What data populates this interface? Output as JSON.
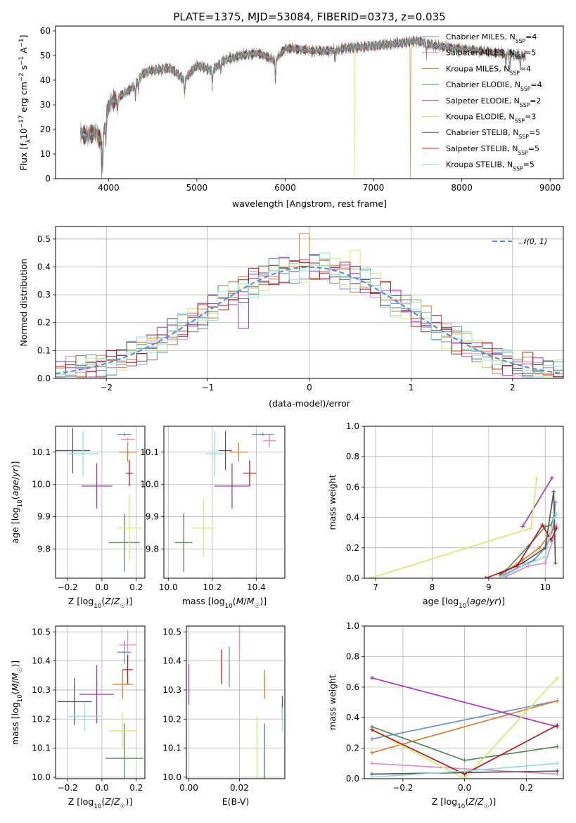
{
  "title": "PLATE=1375, MJD=53084, FIBERID=0373, z=0.035",
  "colors": {
    "Chabrier MILES": "#6a8fd6",
    "Salpeter MILES": "#e889c0",
    "Kroupa MILES": "#e07b2a",
    "Chabrier ELODIE": "#5a8a5e",
    "Salpeter ELODIE": "#a33bb5",
    "Kroupa ELODIE": "#d6ea6a",
    "Chabrier STELIB": "#555555",
    "Salpeter STELIB": "#b01a1a",
    "Kroupa STELIB": "#8ee0e6"
  },
  "chart_data": [
    {
      "id": "spectrum",
      "type": "line",
      "title": "PLATE=1375, MJD=53084, FIBERID=0373, z=0.035",
      "xlabel": "wavelength [Angstrom, rest frame]",
      "ylabel": "Flux [f_λ 10^-17 erg cm^-2 s^-1 A^-1]",
      "ylabel_parts": [
        "Flux [f",
        "λ",
        "10",
        "−17",
        " erg cm",
        "−2",
        " s",
        "−1",
        " A",
        "−1",
        "]"
      ],
      "xlim": [
        3400,
        9150
      ],
      "ylim": [
        0,
        62
      ],
      "xticks": [
        4000,
        5000,
        6000,
        7000,
        8000,
        9000
      ],
      "yticks": [
        0,
        10,
        20,
        30,
        40,
        50,
        60
      ],
      "legend_position": "upper right",
      "legend": [
        {
          "model": "Chabrier MILES",
          "text": "Chabrier MILES, N",
          "sub": "SSP",
          "eq": "=4"
        },
        {
          "model": "Salpeter MILES",
          "text": "Salpeter MILES, N",
          "sub": "SSP",
          "eq": "=5"
        },
        {
          "model": "Kroupa MILES",
          "text": "Kroupa MILES, N",
          "sub": "SSP",
          "eq": "=4"
        },
        {
          "model": "Chabrier ELODIE",
          "text": "Chabrier ELODIE, N",
          "sub": "SSP",
          "eq": "=4"
        },
        {
          "model": "Salpeter ELODIE",
          "text": "Salpeter ELODIE, N",
          "sub": "SSP",
          "eq": "=2"
        },
        {
          "model": "Kroupa ELODIE",
          "text": "Kroupa ELODIE, N",
          "sub": "SSP",
          "eq": "=3"
        },
        {
          "model": "Chabrier STELIB",
          "text": "Chabrier STELIB, N",
          "sub": "SSP",
          "eq": "=5"
        },
        {
          "model": "Salpeter STELIB",
          "text": "Salpeter STELIB, N",
          "sub": "SSP",
          "eq": "=5"
        },
        {
          "model": "Kroupa STELIB",
          "text": "Kroupa STELIB, N",
          "sub": "SSP",
          "eq": "=5"
        }
      ],
      "spectrum_range": [
        3680,
        8720
      ],
      "continuum_knots": [
        [
          3680,
          19
        ],
        [
          3750,
          17
        ],
        [
          3850,
          19
        ],
        [
          3930,
          14
        ],
        [
          3960,
          22
        ],
        [
          4000,
          30
        ],
        [
          4100,
          33
        ],
        [
          4200,
          35
        ],
        [
          4300,
          38
        ],
        [
          4400,
          43
        ],
        [
          4500,
          44
        ],
        [
          4700,
          45
        ],
        [
          4861,
          40
        ],
        [
          5000,
          46
        ],
        [
          5175,
          44
        ],
        [
          5300,
          48
        ],
        [
          5500,
          50
        ],
        [
          5700,
          51
        ],
        [
          5890,
          48
        ],
        [
          6000,
          53
        ],
        [
          6300,
          52
        ],
        [
          6563,
          52
        ],
        [
          6700,
          53
        ],
        [
          7000,
          54
        ],
        [
          7300,
          55
        ],
        [
          7500,
          56
        ],
        [
          7700,
          54
        ],
        [
          7900,
          53
        ],
        [
          8200,
          52
        ],
        [
          8400,
          51
        ],
        [
          8720,
          50
        ]
      ],
      "absorption_lines": [
        [
          3934,
          10
        ],
        [
          3969,
          9
        ],
        [
          4102,
          6
        ],
        [
          4304,
          6
        ],
        [
          4340,
          5
        ],
        [
          4861,
          6
        ],
        [
          5175,
          7
        ],
        [
          5270,
          4
        ],
        [
          5890,
          8
        ],
        [
          6563,
          3
        ],
        [
          7600,
          4
        ],
        [
          8498,
          5
        ],
        [
          8542,
          6
        ],
        [
          8662,
          5
        ]
      ],
      "dropouts": [
        {
          "model": "Kroupa MILES",
          "at": 7420
        },
        {
          "model": "Kroupa ELODIE",
          "at": 6790
        },
        {
          "model": "Chabrier STELIB",
          "at": 3920
        }
      ]
    },
    {
      "id": "residuals",
      "type": "histogram",
      "xlabel": "(data-model)/error",
      "ylabel": "Normed distribution",
      "xlim": [
        -2.5,
        2.5
      ],
      "ylim": [
        0,
        0.545
      ],
      "xticks": [
        -2,
        -1,
        0,
        1,
        2
      ],
      "xtick_labels": [
        "−2",
        "−1",
        "0",
        "1",
        "2"
      ],
      "yticks": [
        0,
        0.1,
        0.2,
        0.3,
        0.4,
        0.5
      ],
      "ytick_labels": [
        "0.0",
        "0.1",
        "0.2",
        "0.3",
        "0.4",
        "0.5"
      ],
      "bin_width": 0.1,
      "legend": "𝒩(0, 1)",
      "legend_position": "upper right",
      "reference_curve": {
        "name": "N(0,1)",
        "mean": 0,
        "sigma": 1,
        "color": "#5b8fd6"
      },
      "highlight_bins": [
        {
          "model": "Kroupa MILES",
          "x": -0.1,
          "value": 0.52
        },
        {
          "model": "Salpeter STELIB",
          "x": -0.6,
          "value": 0.395
        },
        {
          "model": "Salpeter ELODIE",
          "x": -0.3,
          "value": 0.435
        },
        {
          "model": "Kroupa ELODIE",
          "x": 0.4,
          "value": 0.46
        },
        {
          "model": "Salpeter ELODIE",
          "x": -0.7,
          "value": 0.18
        },
        {
          "model": "Kroupa ELODIE",
          "x": 0.8,
          "value": 0.22
        }
      ]
    },
    {
      "id": "age_vs_Z",
      "type": "scatter",
      "xlabel": "Z [log10(Z/Z☉)]",
      "ylabel": "age [log10(age/yr)]",
      "xlim": [
        -0.27,
        0.25
      ],
      "ylim": [
        9.71,
        10.18
      ],
      "xticks": [
        -0.2,
        0.0,
        0.2
      ],
      "xtick_labels": [
        "−0.2",
        "0.0",
        "0.2"
      ],
      "yticks": [
        9.8,
        9.9,
        10.0,
        10.1
      ],
      "ytick_labels": [
        "9.8",
        "9.9",
        "10.0",
        "10.1"
      ],
      "points": [
        {
          "model": "Chabrier MILES",
          "x": 0.13,
          "y": 10.155,
          "xerr": 0.04,
          "yerr": 0.005
        },
        {
          "model": "Salpeter MILES",
          "x": 0.15,
          "y": 10.14,
          "xerr": 0.04,
          "yerr": 0.005
        },
        {
          "model": "Kroupa MILES",
          "x": 0.15,
          "y": 10.1,
          "xerr": 0.05,
          "yerr": 0.03
        },
        {
          "model": "Chabrier ELODIE",
          "x": 0.13,
          "y": 9.82,
          "xerr": 0.09,
          "yerr": 0.09
        },
        {
          "model": "Salpeter ELODIE",
          "x": -0.03,
          "y": 9.995,
          "xerr": 0.09,
          "yerr": 0.07
        },
        {
          "model": "Kroupa ELODIE",
          "x": 0.16,
          "y": 9.865,
          "xerr": 0.07,
          "yerr": 0.1
        },
        {
          "model": "Chabrier STELIB",
          "x": -0.17,
          "y": 10.105,
          "xerr": 0.1,
          "yerr": 0.07
        },
        {
          "model": "Salpeter STELIB",
          "x": 0.16,
          "y": 10.035,
          "xerr": 0.02,
          "yerr": 0.04
        },
        {
          "model": "Kroupa STELIB",
          "x": -0.11,
          "y": 10.095,
          "xerr": 0.09,
          "yerr": 0.07
        }
      ]
    },
    {
      "id": "age_vs_mass",
      "type": "scatter",
      "xlabel": "mass [log10(M/M☉)]",
      "xlim": [
        9.98,
        10.53
      ],
      "ylim": [
        9.71,
        10.18
      ],
      "xticks": [
        10.0,
        10.2,
        10.4
      ],
      "xtick_labels": [
        "10.0",
        "10.2",
        "10.4"
      ],
      "yticks": [
        9.8,
        9.9,
        10.0,
        10.1
      ],
      "ytick_labels": [
        "9.8",
        "9.9",
        "10.0",
        "10.1"
      ],
      "points": [
        {
          "model": "Chabrier MILES",
          "x": 10.43,
          "y": 10.155,
          "xerr": 0.05,
          "yerr": 0.005
        },
        {
          "model": "Salpeter MILES",
          "x": 10.46,
          "y": 10.135,
          "xerr": 0.03,
          "yerr": 0.02
        },
        {
          "model": "Kroupa MILES",
          "x": 10.32,
          "y": 10.1,
          "xerr": 0.04,
          "yerr": 0.03
        },
        {
          "model": "Chabrier ELODIE",
          "x": 10.07,
          "y": 9.82,
          "xerr": 0.04,
          "yerr": 0.09
        },
        {
          "model": "Salpeter ELODIE",
          "x": 10.29,
          "y": 9.995,
          "xerr": 0.08,
          "yerr": 0.07
        },
        {
          "model": "Kroupa ELODIE",
          "x": 10.16,
          "y": 9.865,
          "xerr": 0.05,
          "yerr": 0.09
        },
        {
          "model": "Chabrier STELIB",
          "x": 10.26,
          "y": 10.105,
          "xerr": 0.03,
          "yerr": 0.06
        },
        {
          "model": "Salpeter STELIB",
          "x": 10.37,
          "y": 10.035,
          "xerr": 0.03,
          "yerr": 0.04
        },
        {
          "model": "Kroupa STELIB",
          "x": 10.21,
          "y": 10.095,
          "xerr": 0.04,
          "yerr": 0.07
        }
      ]
    },
    {
      "id": "mass_vs_Z",
      "type": "scatter",
      "xlabel": "Z [log10(Z/Z☉)]",
      "ylabel": "mass [log10(M/M☉)]",
      "xlim": [
        -0.27,
        0.25
      ],
      "ylim": [
        9.995,
        10.52
      ],
      "xticks": [
        -0.2,
        0.0,
        0.2
      ],
      "xtick_labels": [
        "−0.2",
        "0.0",
        "0.2"
      ],
      "yticks": [
        10.0,
        10.1,
        10.2,
        10.3,
        10.4,
        10.5
      ],
      "ytick_labels": [
        "10.0",
        "10.1",
        "10.2",
        "10.3",
        "10.4",
        "10.5"
      ],
      "points": [
        {
          "model": "Chabrier MILES",
          "x": 0.13,
          "y": 10.43,
          "xerr": 0.04,
          "yerr": 0.04
        },
        {
          "model": "Salpeter MILES",
          "x": 0.15,
          "y": 10.455,
          "xerr": 0.05,
          "yerr": 0.05
        },
        {
          "model": "Kroupa MILES",
          "x": 0.12,
          "y": 10.32,
          "xerr": 0.06,
          "yerr": 0.05
        },
        {
          "model": "Chabrier ELODIE",
          "x": 0.13,
          "y": 10.065,
          "xerr": 0.11,
          "yerr": 0.12
        },
        {
          "model": "Salpeter ELODIE",
          "x": -0.03,
          "y": 10.285,
          "xerr": 0.1,
          "yerr": 0.1
        },
        {
          "model": "Kroupa ELODIE",
          "x": 0.12,
          "y": 10.16,
          "xerr": 0.08,
          "yerr": 0.06
        },
        {
          "model": "Chabrier STELIB",
          "x": -0.16,
          "y": 10.26,
          "xerr": 0.1,
          "yerr": 0.08
        },
        {
          "model": "Salpeter STELIB",
          "x": 0.15,
          "y": 10.37,
          "xerr": 0.03,
          "yerr": 0.05
        },
        {
          "model": "Kroupa STELIB",
          "x": -0.1,
          "y": 10.21,
          "xerr": 0.1,
          "yerr": 0.05
        }
      ]
    },
    {
      "id": "mass_vs_EBV",
      "type": "scatter",
      "xlabel": "E(B-V)",
      "xlim": [
        -0.001,
        0.038
      ],
      "ylim": [
        9.995,
        10.52
      ],
      "xticks": [
        0.0,
        0.02
      ],
      "xtick_labels": [
        "0.00",
        "0.02"
      ],
      "yticks": [
        10.0,
        10.1,
        10.2,
        10.3,
        10.4,
        10.5
      ],
      "ytick_labels": [
        "10.0",
        "10.1",
        "10.2",
        "10.3",
        "10.4",
        "10.5"
      ],
      "points": [
        {
          "model": "Chabrier MILES",
          "x": 0.016,
          "y": 10.38,
          "xerr": 0,
          "yerr": 0.07
        },
        {
          "model": "Salpeter MILES",
          "x": 0.02,
          "y": 10.46,
          "xerr": 0,
          "yerr": 0.06
        },
        {
          "model": "Kroupa MILES",
          "x": 0.03,
          "y": 10.32,
          "xerr": 0,
          "yerr": 0.05
        },
        {
          "model": "Chabrier ELODIE",
          "x": 0.03,
          "y": 10.065,
          "xerr": 0,
          "yerr": 0.12
        },
        {
          "model": "Salpeter ELODIE",
          "x": 0.0,
          "y": 10.32,
          "xerr": 0,
          "yerr": 0.07
        },
        {
          "model": "Kroupa ELODIE",
          "x": 0.027,
          "y": 10.1,
          "xerr": 0,
          "yerr": 0.11
        },
        {
          "model": "Chabrier STELIB",
          "x": 0.037,
          "y": 10.24,
          "xerr": 0,
          "yerr": 0.04
        },
        {
          "model": "Salpeter STELIB",
          "x": 0.013,
          "y": 10.38,
          "xerr": 0,
          "yerr": 0.06
        },
        {
          "model": "Kroupa STELIB",
          "x": 0.037,
          "y": 10.2,
          "xerr": 0,
          "yerr": 0.04
        }
      ]
    },
    {
      "id": "mass_weight_vs_age",
      "type": "line",
      "xlabel": "age [log10(age/yr)]",
      "ylabel": "mass weight",
      "xlim": [
        6.8,
        10.32
      ],
      "ylim": [
        0,
        1.0
      ],
      "xticks": [
        7,
        8,
        9,
        10
      ],
      "xtick_labels": [
        "7",
        "8",
        "9",
        "10"
      ],
      "yticks": [
        0,
        0.2,
        0.4,
        0.6,
        0.8,
        1.0
      ],
      "ytick_labels": [
        "0.0",
        "0.2",
        "0.4",
        "0.6",
        "0.8",
        "1.0"
      ],
      "series": [
        {
          "model": "Chabrier MILES",
          "x": [
            9.25,
            9.8,
            10.0,
            10.15,
            10.18
          ],
          "y": [
            0.02,
            0.12,
            0.2,
            0.33,
            0.5
          ]
        },
        {
          "model": "Salpeter MILES",
          "x": [
            9.3,
            9.7,
            10.0,
            10.15,
            10.2
          ],
          "y": [
            0.01,
            0.08,
            0.1,
            0.27,
            0.35
          ]
        },
        {
          "model": "Kroupa MILES",
          "x": [
            9.2,
            9.6,
            9.9,
            10.1,
            10.15
          ],
          "y": [
            0.02,
            0.12,
            0.2,
            0.3,
            0.34
          ]
        },
        {
          "model": "Chabrier ELODIE",
          "x": [
            9.3,
            9.7,
            10.0,
            10.1,
            10.15
          ],
          "y": [
            0.05,
            0.21,
            0.34,
            0.35,
            0.4
          ]
        },
        {
          "model": "Salpeter ELODIE",
          "x": [
            9.6,
            10.12
          ],
          "y": [
            0.34,
            0.66
          ]
        },
        {
          "model": "Kroupa ELODIE",
          "x": [
            6.9,
            9.75,
            9.85
          ],
          "y": [
            0.0,
            0.33,
            0.66
          ]
        },
        {
          "model": "Chabrier STELIB",
          "x": [
            9.2,
            9.6,
            10.0,
            10.15,
            10.18
          ],
          "y": [
            0.03,
            0.1,
            0.2,
            0.57,
            0.1
          ]
        },
        {
          "model": "Salpeter STELIB",
          "x": [
            8.95,
            9.5,
            9.95,
            10.1,
            10.2
          ],
          "y": [
            0.0,
            0.08,
            0.35,
            0.25,
            0.33
          ]
        },
        {
          "model": "Kroupa STELIB",
          "x": [
            9.25,
            9.6,
            10.0,
            10.15,
            10.2
          ],
          "y": [
            0.01,
            0.08,
            0.14,
            0.39,
            0.42
          ]
        }
      ]
    },
    {
      "id": "mass_weight_vs_Z",
      "type": "line",
      "xlabel": "Z [log10(Z/Z☉)]",
      "ylabel": "mass weight",
      "xlim": [
        -0.325,
        0.32
      ],
      "ylim": [
        0,
        1.0
      ],
      "xticks": [
        -0.2,
        0.0,
        0.2
      ],
      "xtick_labels": [
        "−0.2",
        "0.0",
        "0.2"
      ],
      "yticks": [
        0,
        0.2,
        0.4,
        0.6,
        0.8,
        1.0
      ],
      "ytick_labels": [
        "0.0",
        "0.2",
        "0.4",
        "0.6",
        "0.8",
        "1.0"
      ],
      "series": [
        {
          "model": "Chabrier MILES",
          "x": [
            -0.3,
            0.3
          ],
          "y": [
            0.26,
            0.51
          ]
        },
        {
          "model": "Salpeter MILES",
          "x": [
            -0.3,
            0.3
          ],
          "y": [
            0.1,
            0.03
          ]
        },
        {
          "model": "Kroupa MILES",
          "x": [
            -0.3,
            0.3
          ],
          "y": [
            0.17,
            0.51
          ]
        },
        {
          "model": "Chabrier ELODIE",
          "x": [
            -0.3,
            0.0,
            0.3
          ],
          "y": [
            0.34,
            0.12,
            0.21
          ]
        },
        {
          "model": "Salpeter ELODIE",
          "x": [
            -0.3,
            0.3
          ],
          "y": [
            0.66,
            0.34
          ]
        },
        {
          "model": "Kroupa ELODIE",
          "x": [
            -0.3,
            0.0,
            0.3
          ],
          "y": [
            0.32,
            0.0,
            0.66
          ]
        },
        {
          "model": "Chabrier STELIB",
          "x": [
            -0.3,
            0.3
          ],
          "y": [
            0.03,
            0.05
          ]
        },
        {
          "model": "Salpeter STELIB",
          "x": [
            -0.3,
            0.0,
            0.3
          ],
          "y": [
            0.32,
            0.03,
            0.35
          ]
        },
        {
          "model": "Kroupa STELIB",
          "x": [
            -0.3,
            0.0,
            0.3
          ],
          "y": [
            0.01,
            0.05,
            0.1
          ]
        }
      ]
    }
  ]
}
